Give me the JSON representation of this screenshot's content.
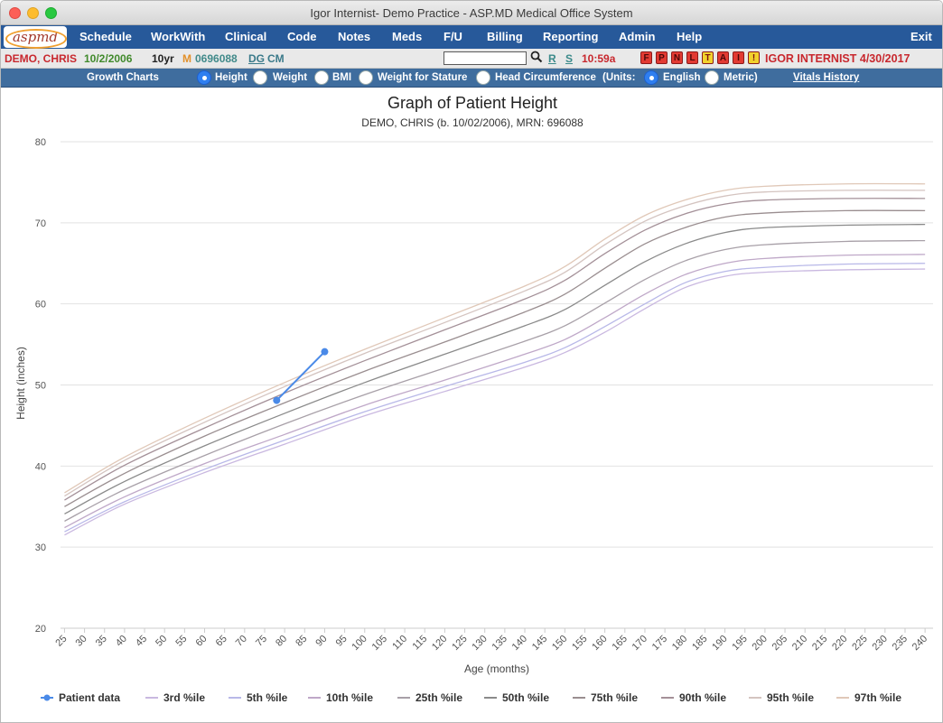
{
  "window": {
    "title": "Igor Internist- Demo Practice - ASP.MD Medical Office System"
  },
  "logo": {
    "text": "aspmd"
  },
  "menu": [
    "Schedule",
    "WorkWith",
    "Clinical",
    "Code",
    "Notes",
    "Meds",
    "F/U",
    "Billing",
    "Reporting",
    "Admin",
    "Help",
    "Exit"
  ],
  "patient": {
    "name": "DEMO, CHRIS",
    "dob": "10/2/2006",
    "age": "10yr",
    "sex": "M",
    "mrn": "0696088",
    "dg": "DG",
    "cm": "CM",
    "search_value": "",
    "link_r": "R",
    "link_s": "S",
    "time": "10:59a",
    "flags": [
      {
        "letter": "F",
        "color": "#e23a32"
      },
      {
        "letter": "P",
        "color": "#e23a32"
      },
      {
        "letter": "N",
        "color": "#e23a32"
      },
      {
        "letter": "L",
        "color": "#e23a32"
      },
      {
        "letter": "T",
        "color": "#f2d22c"
      },
      {
        "letter": "A",
        "color": "#e23a32"
      },
      {
        "letter": "I",
        "color": "#e23a32"
      },
      {
        "letter": "!",
        "color": "#f2d22c"
      }
    ],
    "user_date": "IGOR INTERNIST 4/30/2017"
  },
  "growth_bar": {
    "label": "Growth Charts",
    "options": [
      {
        "label": "Height",
        "selected": true
      },
      {
        "label": "Weight",
        "selected": false
      },
      {
        "label": "BMI",
        "selected": false
      },
      {
        "label": "Weight for Stature",
        "selected": false
      },
      {
        "label": "Head Circumference",
        "selected": false
      }
    ],
    "units_label": "(Units:",
    "units": [
      {
        "label": "English",
        "selected": true
      },
      {
        "label": "Metric)",
        "selected": false
      }
    ],
    "vitals_link": "Vitals History"
  },
  "chart_data": {
    "type": "line",
    "title": "Graph of Patient Height",
    "subtitle": "DEMO, CHRIS (b. 10/02/2006), MRN: 696088",
    "xlabel": "Age (months)",
    "ylabel": "Height (inches)",
    "xlim": [
      24,
      242
    ],
    "ylim": [
      20,
      80
    ],
    "x_ticks": [
      25,
      30,
      35,
      40,
      45,
      50,
      55,
      60,
      65,
      70,
      75,
      80,
      85,
      90,
      95,
      100,
      105,
      110,
      115,
      120,
      125,
      130,
      135,
      140,
      145,
      150,
      155,
      160,
      165,
      170,
      175,
      180,
      185,
      190,
      195,
      200,
      205,
      210,
      215,
      220,
      225,
      230,
      235,
      240
    ],
    "y_ticks": [
      20,
      30,
      40,
      50,
      60,
      70,
      80
    ],
    "grid": "horizontal",
    "legend_position": "bottom",
    "series": [
      {
        "name": "Patient data",
        "color": "#4a8ae8",
        "x": [
          78,
          90
        ],
        "y": [
          48.1,
          54.1
        ]
      },
      {
        "name": "3rd %ile",
        "color": "#c9b8e0",
        "x": [
          25,
          40,
          60,
          80,
          100,
          120,
          140,
          150,
          160,
          170,
          180,
          190,
          200,
          220,
          240
        ],
        "y": [
          31.5,
          35.3,
          39.2,
          42.7,
          46.2,
          49.2,
          52.2,
          54.0,
          56.5,
          59.4,
          62.0,
          63.4,
          63.9,
          64.2,
          64.3
        ]
      },
      {
        "name": "5th %ile",
        "color": "#b8b8e8",
        "x": [
          25,
          40,
          60,
          80,
          100,
          120,
          140,
          150,
          160,
          170,
          180,
          190,
          200,
          220,
          240
        ],
        "y": [
          31.9,
          35.6,
          39.6,
          43.2,
          46.7,
          49.8,
          52.8,
          54.6,
          57.2,
          60.0,
          62.6,
          64.0,
          64.5,
          64.9,
          65.0
        ]
      },
      {
        "name": "10th %ile",
        "color": "#bfa8c8",
        "x": [
          25,
          40,
          60,
          80,
          100,
          120,
          140,
          150,
          160,
          170,
          180,
          190,
          200,
          220,
          240
        ],
        "y": [
          32.4,
          36.2,
          40.3,
          43.9,
          47.5,
          50.6,
          53.8,
          55.6,
          58.3,
          61.2,
          63.6,
          65.0,
          65.6,
          66.0,
          66.1
        ]
      },
      {
        "name": "25th %ile",
        "color": "#a8a0a8",
        "x": [
          25,
          40,
          60,
          80,
          100,
          120,
          140,
          150,
          160,
          170,
          180,
          190,
          200,
          220,
          240
        ],
        "y": [
          33.2,
          37.1,
          41.3,
          45.2,
          48.8,
          52.1,
          55.4,
          57.3,
          60.1,
          63.0,
          65.3,
          66.7,
          67.3,
          67.7,
          67.8
        ]
      },
      {
        "name": "50th %ile",
        "color": "#8a8a8a",
        "x": [
          25,
          40,
          60,
          80,
          100,
          120,
          140,
          150,
          160,
          170,
          180,
          190,
          200,
          220,
          240
        ],
        "y": [
          34.1,
          38.1,
          42.5,
          46.5,
          50.3,
          53.8,
          57.3,
          59.3,
          62.3,
          65.2,
          67.4,
          68.8,
          69.4,
          69.7,
          69.8
        ]
      },
      {
        "name": "75th %ile",
        "color": "#9a8e90",
        "x": [
          25,
          40,
          60,
          80,
          100,
          120,
          140,
          150,
          160,
          170,
          180,
          190,
          200,
          220,
          240
        ],
        "y": [
          35.0,
          39.1,
          43.7,
          47.8,
          51.7,
          55.3,
          59.0,
          61.2,
          64.4,
          67.4,
          69.4,
          70.7,
          71.2,
          71.5,
          71.5
        ]
      },
      {
        "name": "90th %ile",
        "color": "#a49098",
        "x": [
          25,
          40,
          60,
          80,
          100,
          120,
          140,
          150,
          160,
          170,
          180,
          190,
          200,
          220,
          240
        ],
        "y": [
          35.8,
          40.1,
          44.7,
          49.0,
          53.0,
          56.8,
          60.6,
          62.9,
          66.2,
          69.1,
          71.1,
          72.3,
          72.8,
          73.0,
          73.0
        ]
      },
      {
        "name": "95th %ile",
        "color": "#d4c4c0",
        "x": [
          25,
          40,
          60,
          80,
          100,
          120,
          140,
          150,
          160,
          170,
          180,
          190,
          200,
          220,
          240
        ],
        "y": [
          36.3,
          40.7,
          45.4,
          49.8,
          53.9,
          57.7,
          61.6,
          63.9,
          67.3,
          70.2,
          72.1,
          73.3,
          73.8,
          74.0,
          74.0
        ]
      },
      {
        "name": "97th %ile",
        "color": "#e0c8b8",
        "x": [
          25,
          40,
          60,
          80,
          100,
          120,
          140,
          150,
          160,
          170,
          180,
          190,
          200,
          220,
          240
        ],
        "y": [
          36.7,
          41.1,
          45.9,
          50.3,
          54.4,
          58.3,
          62.2,
          64.6,
          68.0,
          70.9,
          72.8,
          74.0,
          74.5,
          74.8,
          74.8
        ]
      }
    ]
  }
}
